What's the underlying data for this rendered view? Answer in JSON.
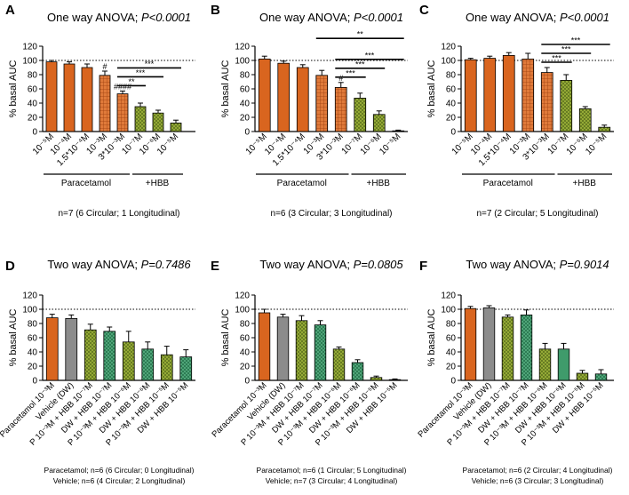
{
  "colors": {
    "orange": "#d9651f",
    "green": "#8ca32b",
    "grey": "#8c8c8c",
    "teal": "#3f9b6b",
    "errorbar": "#000000"
  },
  "chart_data": [
    {
      "panel": "A",
      "type": "bar",
      "title": "One way ANOVA; ",
      "title_p": "P<0.0001",
      "ylabel": "% basal AUC",
      "ylim": [
        0,
        120
      ],
      "yticks": [
        0,
        20,
        40,
        60,
        80,
        100,
        120
      ],
      "baseline": 100,
      "categories": [
        "10⁻⁵M",
        "10⁻⁴M",
        "1.5*10⁻⁴M",
        "10⁻³M",
        "3*10⁻³M",
        "10⁻⁷M",
        "10⁻⁶M",
        "10⁻⁵M"
      ],
      "values": [
        98,
        95,
        90,
        79,
        53,
        35,
        26,
        12
      ],
      "errors": [
        2,
        3,
        5,
        6,
        4,
        5,
        4,
        4
      ],
      "fills": [
        "orange",
        "orange",
        "orange",
        "orange-hatch",
        "orange-hatch",
        "green-hatch",
        "green-hatch",
        "green-hatch"
      ],
      "groups": [
        {
          "label": "Paracetamol",
          "from": 0,
          "to": 4
        },
        {
          "label": "+HBB",
          "from": 5,
          "to": 7
        }
      ],
      "bar_labels": [
        {
          "index": 3,
          "text": "#"
        },
        {
          "index": 4,
          "text": "####"
        }
      ],
      "brackets": [
        {
          "from": 4,
          "to": 5,
          "text": "**"
        },
        {
          "from": 4,
          "to": 6,
          "text": "***"
        },
        {
          "from": 4,
          "to": 7,
          "text": "***"
        }
      ],
      "note": [
        "n=7 (6 Circular; 1 Longitudinal)"
      ]
    },
    {
      "panel": "B",
      "type": "bar",
      "title": "One way ANOVA; ",
      "title_p": "P<0.0001",
      "ylabel": "% basal AUC",
      "ylim": [
        0,
        120
      ],
      "yticks": [
        0,
        20,
        40,
        60,
        80,
        100,
        120
      ],
      "baseline": 100,
      "categories": [
        "10⁻⁵M",
        "10⁻⁴M",
        "1.5*10⁻⁴M",
        "10⁻³M",
        "3*10⁻³M",
        "10⁻⁷M",
        "10⁻⁶M",
        "10⁻⁵M"
      ],
      "values": [
        102,
        96,
        90,
        79,
        62,
        47,
        24,
        1
      ],
      "errors": [
        4,
        3,
        4,
        7,
        7,
        7,
        5,
        1
      ],
      "fills": [
        "orange",
        "orange",
        "orange",
        "orange-hatch",
        "orange-hatch",
        "green-hatch",
        "green-hatch",
        "green-hatch"
      ],
      "groups": [
        {
          "label": "Paracetamol",
          "from": 0,
          "to": 4
        },
        {
          "label": "+HBB",
          "from": 5,
          "to": 7
        }
      ],
      "bar_labels": [
        {
          "index": 4,
          "text": "#"
        }
      ],
      "brackets": [
        {
          "from": 4,
          "to": 5,
          "text": "***"
        },
        {
          "from": 4,
          "to": 6,
          "text": "***"
        },
        {
          "from": 4,
          "to": 7,
          "text": "***"
        },
        {
          "from": 3,
          "to": 7,
          "text": "**"
        }
      ],
      "note": [
        "n=6 (3 Circular; 3 Longitudinal)"
      ]
    },
    {
      "panel": "C",
      "type": "bar",
      "title": "One way ANOVA; ",
      "title_p": "P<0.0001",
      "ylabel": "% basal AUC",
      "ylim": [
        0,
        120
      ],
      "yticks": [
        0,
        20,
        40,
        60,
        80,
        100,
        120
      ],
      "baseline": 100,
      "categories": [
        "10⁻⁵M",
        "10⁻⁴M",
        "1.5*10⁻⁴M",
        "10⁻³M",
        "3*10⁻³M",
        "10⁻⁷M",
        "10⁻⁶M",
        "10⁻⁵M"
      ],
      "values": [
        101,
        103,
        107,
        102,
        83,
        72,
        32,
        6
      ],
      "errors": [
        2,
        3,
        4,
        8,
        7,
        8,
        3,
        3
      ],
      "fills": [
        "orange",
        "orange",
        "orange",
        "orange-hatch",
        "orange-hatch",
        "green-hatch",
        "green-hatch",
        "green-hatch"
      ],
      "groups": [
        {
          "label": "Paracetamol",
          "from": 0,
          "to": 4
        },
        {
          "label": "+HBB",
          "from": 5,
          "to": 7
        }
      ],
      "bar_labels": [],
      "brackets": [
        {
          "from": 4,
          "to": 5,
          "text": "***"
        },
        {
          "from": 4,
          "to": 6,
          "text": "***"
        },
        {
          "from": 4,
          "to": 7,
          "text": "***"
        }
      ],
      "note": [
        "n=7 (2 Circular; 5 Longitudinal)"
      ]
    },
    {
      "panel": "D",
      "type": "bar",
      "title": "Two way ANOVA; ",
      "title_p": "P=0.7486",
      "ylabel": "% basal AUC",
      "ylim": [
        0,
        120
      ],
      "yticks": [
        0,
        20,
        40,
        60,
        80,
        100,
        120
      ],
      "baseline": 100,
      "categories": [
        "Paracetamol 10⁻³M",
        "Vehicle (DW)",
        "P 10⁻³M + HBB 10⁻⁷M",
        "DW + HBB 10⁻⁷M",
        "P 10⁻³M + HBB 10⁻⁶M",
        "DW + HBB 10⁻⁶M",
        "P 10⁻³M + HBB 10⁻⁵M",
        "DW + HBB 10⁻⁵M"
      ],
      "values": [
        88,
        87,
        71,
        69,
        54,
        44,
        36,
        33
      ],
      "errors": [
        5,
        5,
        8,
        6,
        15,
        10,
        12,
        10
      ],
      "fills": [
        "orange",
        "grey",
        "green-hatch",
        "teal-hatch",
        "green-hatch",
        "teal-hatch",
        "green-hatch",
        "teal-hatch"
      ],
      "groups": [],
      "bar_labels": [],
      "brackets": [],
      "note": [
        "Paracetamol; n=6 (6 Circular; 0 Longitudinal)",
        "Vehicle; n=6 (4 Circular; 2 Longitudinal)"
      ]
    },
    {
      "panel": "E",
      "type": "bar",
      "title": "Two way ANOVA; ",
      "title_p": "P=0.0805",
      "ylabel": "% basal AUC",
      "ylim": [
        0,
        120
      ],
      "yticks": [
        0,
        20,
        40,
        60,
        80,
        100,
        120
      ],
      "baseline": 100,
      "categories": [
        "Paracetamol 10⁻³M",
        "Vehicle (DW)",
        "P 10⁻³M + HBB 10⁻⁷M",
        "DW + HBB 10⁻⁷M",
        "P 10⁻³M + HBB 10⁻⁶M",
        "DW + HBB 10⁻⁶M",
        "P 10⁻³M + HBB 10⁻⁵M",
        "DW + HBB 10⁻⁵M"
      ],
      "values": [
        95,
        89,
        84,
        78,
        44,
        25,
        4,
        1
      ],
      "errors": [
        5,
        4,
        7,
        6,
        3,
        4,
        2,
        1
      ],
      "fills": [
        "orange",
        "grey",
        "green-hatch",
        "teal-hatch",
        "green-hatch",
        "teal-hatch",
        "green-hatch",
        "teal-hatch"
      ],
      "groups": [],
      "bar_labels": [],
      "brackets": [],
      "note": [
        "Paracetamol; n=6 (1 Circular; 5 Longitudinal)",
        "Vehicle; n=7 (3 Circular; 4 Longitudinal)"
      ]
    },
    {
      "panel": "F",
      "type": "bar",
      "title": "Two way ANOVA; ",
      "title_p": "P=0.9014",
      "ylabel": "% basal AUC",
      "ylim": [
        0,
        120
      ],
      "yticks": [
        0,
        20,
        40,
        60,
        80,
        100,
        120
      ],
      "baseline": 100,
      "categories": [
        "Paracetamol 10⁻³M",
        "Vehicle (DW)",
        "P 10⁻³M + HBB 10⁻⁷M",
        "DW + HBB 10⁻⁷M",
        "P 10⁻³M + HBB 10⁻⁶M",
        "DW + HBB 10⁻⁶M",
        "P 10⁻³M + HBB 10⁻⁵M",
        "DW + HBB 10⁻⁵M"
      ],
      "values": [
        101,
        102,
        89,
        92,
        44,
        44,
        10,
        9
      ],
      "errors": [
        3,
        3,
        3,
        7,
        8,
        8,
        4,
        6
      ],
      "fills": [
        "orange",
        "grey",
        "green-hatch",
        "teal-hatch",
        "green-hatch",
        "teal",
        "green-hatch",
        "teal-hatch"
      ],
      "groups": [],
      "bar_labels": [],
      "brackets": [],
      "note": [
        "Paracetamol; n=6 (2 Circular; 4 Longitudinal)",
        "Vehicle; n=6 (3 Circular; 3 Longitudinal)"
      ]
    }
  ]
}
